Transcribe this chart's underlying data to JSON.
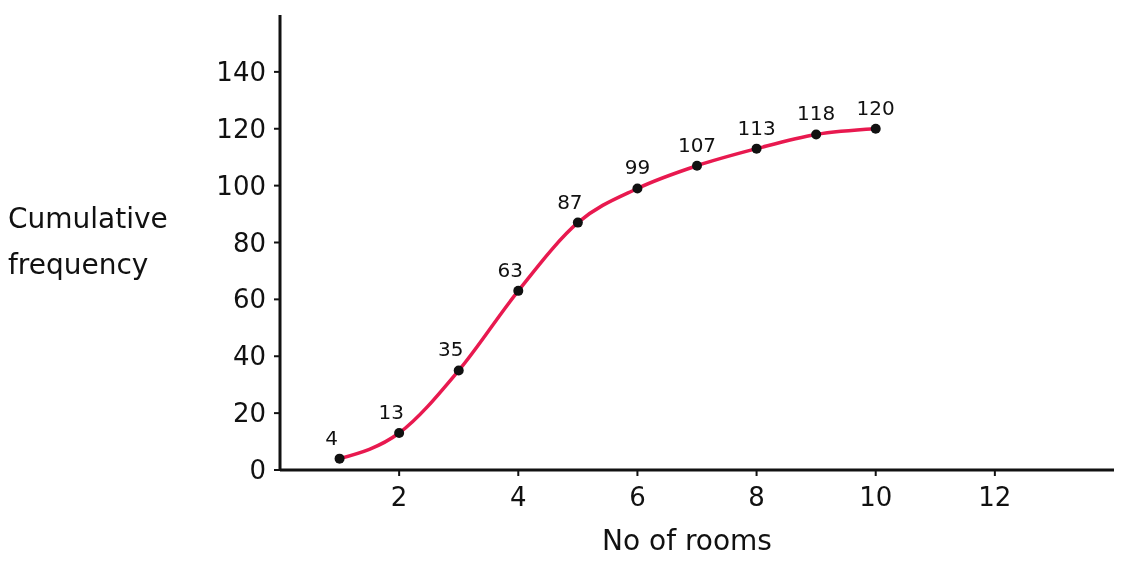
{
  "chart_data": {
    "type": "line",
    "xlabel": "No of rooms",
    "ylabel": "Cumulative frequency",
    "x": [
      1,
      2,
      3,
      4,
      5,
      6,
      7,
      8,
      9,
      10
    ],
    "series": [
      {
        "color": "#e8194f",
        "values": [
          4,
          13,
          35,
          63,
          87,
          99,
          107,
          113,
          118,
          120
        ]
      }
    ],
    "xlim": [
      0,
      14
    ],
    "xticks": [
      2,
      4,
      6,
      8,
      10,
      12
    ],
    "ylim": [
      0,
      160
    ],
    "yticks": [
      0,
      20,
      40,
      60,
      80,
      100,
      120,
      140
    ],
    "marker": "circle",
    "data_labels": true,
    "grid": false
  }
}
